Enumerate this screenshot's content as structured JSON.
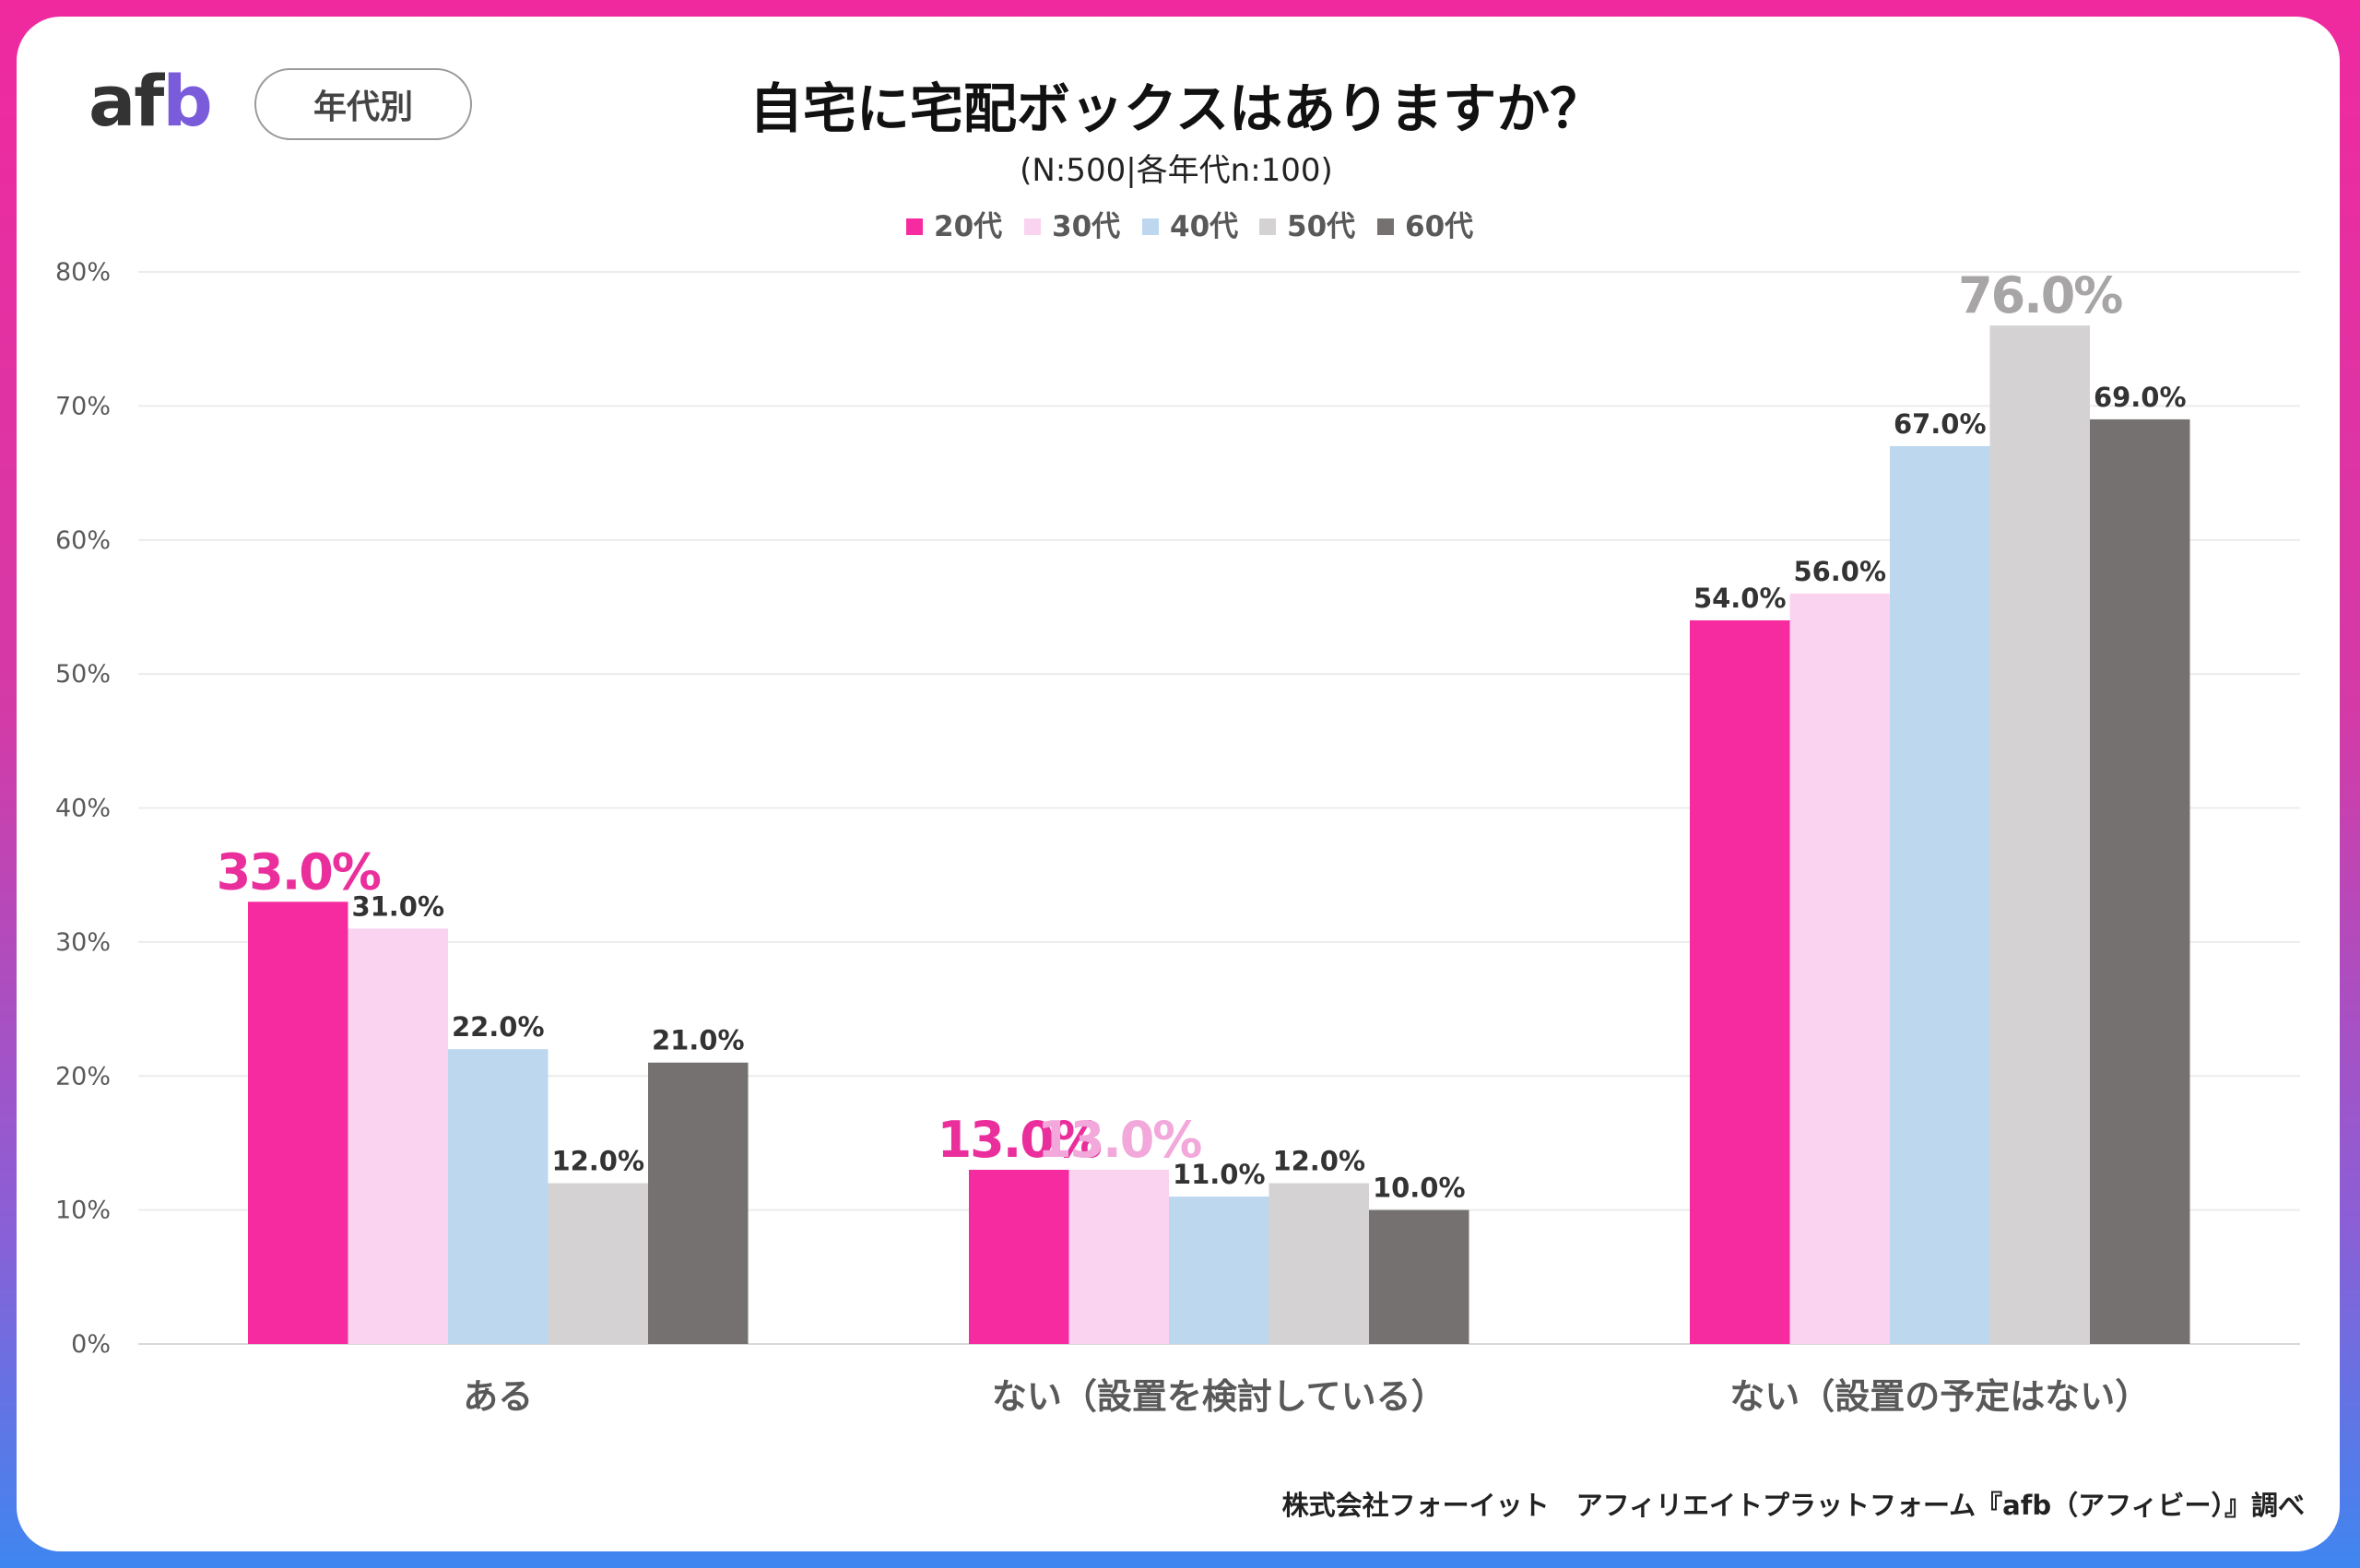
{
  "header": {
    "logo_prefix": "af",
    "logo_suffix": "b",
    "segment_label": "年代別"
  },
  "chart_data": {
    "type": "bar",
    "title": "自宅に宅配ボックスはありますか？",
    "subtitle": "(N:500|各年代n:100)",
    "categories": [
      "ある",
      "ない（設置を検討している）",
      "ない（設置の予定はない）"
    ],
    "series": [
      {
        "name": "20代",
        "color": "#f72ba0",
        "values": [
          33.0,
          13.0,
          54.0
        ]
      },
      {
        "name": "30代",
        "color": "#fad3f1",
        "values": [
          31.0,
          13.0,
          56.0
        ]
      },
      {
        "name": "40代",
        "color": "#bdd7ee",
        "values": [
          22.0,
          11.0,
          67.0
        ]
      },
      {
        "name": "50代",
        "color": "#d5d2d3",
        "values": [
          12.0,
          12.0,
          76.0
        ]
      },
      {
        "name": "60代",
        "color": "#767171",
        "values": [
          21.0,
          10.0,
          69.0
        ]
      }
    ],
    "data_labels": [
      [
        "33.0%",
        "31.0%",
        "22.0%",
        "12.0%",
        "21.0%"
      ],
      [
        "13.0%",
        "13.0%",
        "11.0%",
        "12.0%",
        "10.0%"
      ],
      [
        "54.0%",
        "56.0%",
        "67.0%",
        "76.0%",
        "69.0%"
      ]
    ],
    "highlight_labels": [
      {
        "category": 0,
        "series": 0,
        "color": "#ea2f9c"
      },
      {
        "category": 1,
        "series": 0,
        "color": "#ea2f9c"
      },
      {
        "category": 1,
        "series": 1,
        "color": "#f2a8da"
      },
      {
        "category": 2,
        "series": 3,
        "color": "#a8a5a6"
      }
    ],
    "y_ticks": [
      "0%",
      "10%",
      "20%",
      "30%",
      "40%",
      "50%",
      "60%",
      "70%",
      "80%"
    ],
    "ylim": [
      0,
      80
    ],
    "grid": true,
    "legend": "top-center",
    "xlabel": "",
    "ylabel": ""
  },
  "footer": {
    "source": "株式会社フォーイット　アフィリエイトプラットフォーム『afb（アフィビー）』調べ"
  }
}
